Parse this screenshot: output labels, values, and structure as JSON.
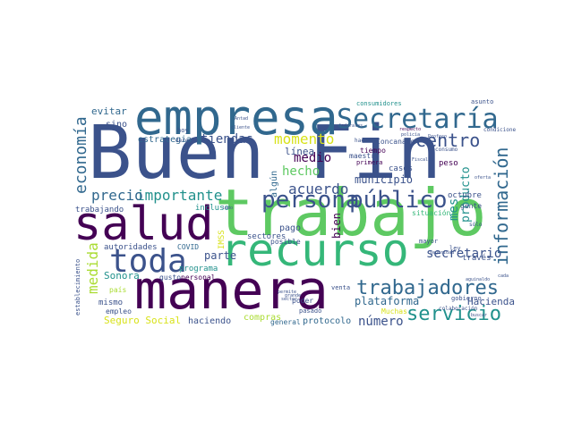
{
  "palette": {
    "background": "#ffffff",
    "dark_purple": "#440154",
    "indigo": "#3b528b",
    "navy": "#31688e",
    "teal": "#21918c",
    "green": "#35b779",
    "light_green": "#5ec962",
    "yellow": "#d8e219",
    "lime": "#aadc32"
  },
  "words": [
    "Buen Fin",
    "trabajo",
    "manera",
    "empresa",
    "salud",
    "recurso",
    "toda",
    "Secretaría",
    "persona",
    "público",
    "trabajadores",
    "servicio",
    "información",
    "centro",
    "economía",
    "medida",
    "importante",
    "precio",
    "acuerdo",
    "momento",
    "hecho",
    "tiendas",
    "medio",
    "municipio",
    "mes",
    "producto",
    "secretario",
    "número",
    "plataforma",
    "Hacienda",
    "parte",
    "Sonora",
    "Seguro Social",
    "bien",
    "línea",
    "estrategia",
    "evitar",
    "sino",
    "haciendo",
    "compras",
    "protocolo",
    "general",
    "pago",
    "sectores",
    "autoridades",
    "COVID",
    "programa",
    "personal",
    "mismo",
    "empleo",
    "país",
    "trabajando",
    "través",
    "octubre",
    "gente",
    "situación",
    "mayor",
    "casos",
    "peso",
    "tiempo",
    "maestro",
    "Concanaco",
    "hacemos",
    "consumidores",
    "asunto",
    "respecto",
    "policía",
    "consumo",
    "condiciones",
    "sólo",
    "gobierno",
    "colaboración",
    "poder",
    "posible",
    "venta",
    "establecimiento",
    "algún",
    "incluso",
    "hoy",
    "derecho",
    "gusto",
    "pasado",
    "primera",
    "cliente",
    "Muchas",
    "IMSS",
    "Profeco",
    "buscar",
    "oferta",
    "lado",
    "sector",
    "ley",
    "permite",
    "seguridad",
    "cada",
    "aguinaldo",
    "Antad",
    "Fiscalía",
    "federales",
    "grande"
  ]
}
